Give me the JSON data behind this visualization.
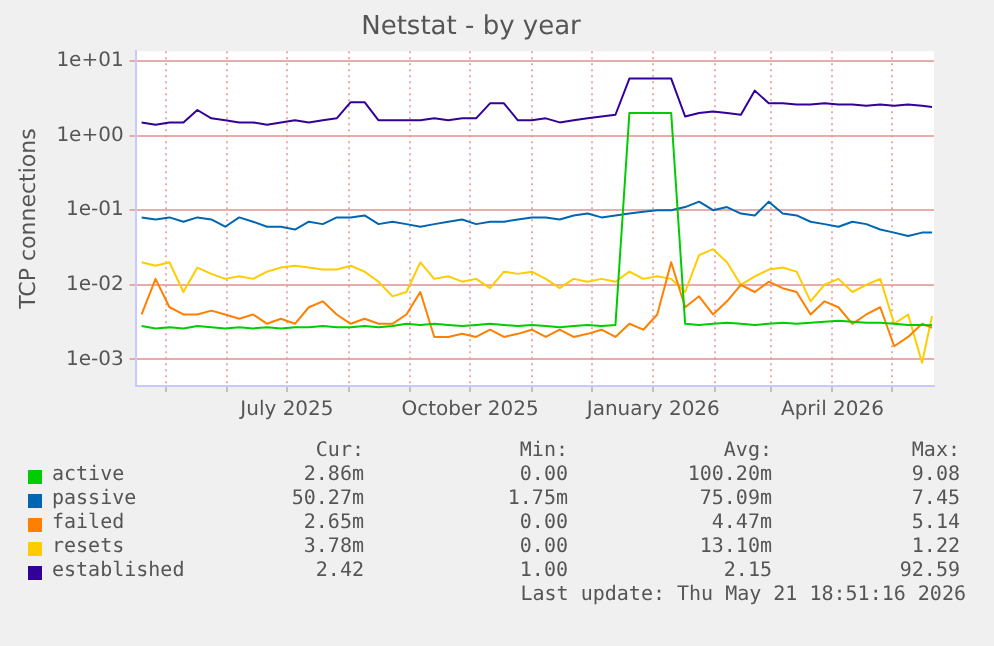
{
  "chart_data": {
    "type": "line",
    "title": "Netstat - by year",
    "ylabel": "TCP connections",
    "log": "y",
    "grid": true,
    "legend": "bottom",
    "marker": "none",
    "line_style": "solid",
    "x": [
      "2025-04-19",
      "2025-04-26",
      "2025-05-03",
      "2025-05-10",
      "2025-05-17",
      "2025-05-24",
      "2025-05-31",
      "2025-06-07",
      "2025-06-14",
      "2025-06-21",
      "2025-06-28",
      "2025-07-05",
      "2025-07-12",
      "2025-07-19",
      "2025-07-26",
      "2025-08-02",
      "2025-08-09",
      "2025-08-16",
      "2025-08-23",
      "2025-08-30",
      "2025-09-06",
      "2025-09-13",
      "2025-09-20",
      "2025-09-27",
      "2025-10-04",
      "2025-10-11",
      "2025-10-18",
      "2025-10-25",
      "2025-11-01",
      "2025-11-08",
      "2025-11-15",
      "2025-11-22",
      "2025-11-29",
      "2025-12-06",
      "2025-12-13",
      "2025-12-20",
      "2025-12-27",
      "2026-01-03",
      "2026-01-10",
      "2026-01-17",
      "2026-01-24",
      "2026-01-31",
      "2026-02-07",
      "2026-02-14",
      "2026-02-21",
      "2026-02-28",
      "2026-03-07",
      "2026-03-14",
      "2026-03-21",
      "2026-03-28",
      "2026-04-04",
      "2026-04-11",
      "2026-04-18",
      "2026-04-25",
      "2026-05-02",
      "2026-05-09",
      "2026-05-16",
      "2026-05-21"
    ],
    "xlim": [
      "2025-04-16",
      "2026-05-22"
    ],
    "xticks": [
      {
        "value": "2025-05-01",
        "label": null
      },
      {
        "value": "2025-06-01",
        "label": null
      },
      {
        "value": "2025-07-01",
        "label": "July 2025"
      },
      {
        "value": "2025-08-01",
        "label": null
      },
      {
        "value": "2025-09-01",
        "label": null
      },
      {
        "value": "2025-10-01",
        "label": "October 2025"
      },
      {
        "value": "2025-11-01",
        "label": null
      },
      {
        "value": "2025-12-01",
        "label": null
      },
      {
        "value": "2026-01-01",
        "label": "January 2026"
      },
      {
        "value": "2026-02-01",
        "label": null
      },
      {
        "value": "2026-03-01",
        "label": null
      },
      {
        "value": "2026-04-01",
        "label": "April 2026"
      },
      {
        "value": "2026-05-01",
        "label": null
      }
    ],
    "ylim": [
      0.00044,
      13.5
    ],
    "yticks": [
      {
        "value": 0.001,
        "label": "1e-03"
      },
      {
        "value": 0.01,
        "label": "1e-02"
      },
      {
        "value": 0.1,
        "label": "1e-01"
      },
      {
        "value": 1,
        "label": "1e+00"
      },
      {
        "value": 10,
        "label": "1e+01"
      }
    ],
    "series": [
      {
        "name": "active",
        "color": "#00cc00",
        "values": [
          0.0028,
          0.0026,
          0.0027,
          0.0026,
          0.0028,
          0.0027,
          0.0026,
          0.0027,
          0.0026,
          0.0027,
          0.0026,
          0.0027,
          0.0027,
          0.0028,
          0.0027,
          0.0027,
          0.0028,
          0.0027,
          0.0028,
          0.003,
          0.0029,
          0.003,
          0.0029,
          0.0028,
          0.0029,
          0.003,
          0.0029,
          0.0028,
          0.0029,
          0.0028,
          0.0027,
          0.0028,
          0.0029,
          0.0028,
          0.0029,
          2,
          2,
          2,
          2,
          0.003,
          0.0029,
          0.003,
          0.0031,
          0.003,
          0.0029,
          0.003,
          0.0031,
          0.003,
          0.0031,
          0.0032,
          0.0033,
          0.0032,
          0.0031,
          0.0031,
          0.003,
          0.0029,
          0.0029,
          0.00286
        ]
      },
      {
        "name": "passive",
        "color": "#0066b3",
        "values": [
          0.08,
          0.075,
          0.08,
          0.07,
          0.08,
          0.075,
          0.06,
          0.08,
          0.07,
          0.06,
          0.06,
          0.055,
          0.07,
          0.065,
          0.08,
          0.08,
          0.085,
          0.065,
          0.07,
          0.065,
          0.06,
          0.065,
          0.07,
          0.075,
          0.065,
          0.07,
          0.07,
          0.075,
          0.08,
          0.08,
          0.075,
          0.085,
          0.09,
          0.08,
          0.085,
          0.09,
          0.095,
          0.1,
          0.1,
          0.11,
          0.13,
          0.1,
          0.11,
          0.09,
          0.085,
          0.13,
          0.09,
          0.085,
          0.07,
          0.065,
          0.06,
          0.07,
          0.065,
          0.055,
          0.05,
          0.045,
          0.05,
          0.05
        ]
      },
      {
        "name": "failed",
        "color": "#ff8000",
        "values": [
          0.004,
          0.012,
          0.005,
          0.004,
          0.004,
          0.0045,
          0.004,
          0.0035,
          0.004,
          0.003,
          0.0035,
          0.003,
          0.005,
          0.006,
          0.004,
          0.003,
          0.0035,
          0.003,
          0.003,
          0.004,
          0.008,
          0.002,
          0.002,
          0.0022,
          0.002,
          0.0025,
          0.002,
          0.0022,
          0.0025,
          0.002,
          0.0025,
          0.002,
          0.0022,
          0.0025,
          0.002,
          0.003,
          0.0025,
          0.004,
          0.02,
          0.005,
          0.007,
          0.004,
          0.006,
          0.01,
          0.008,
          0.011,
          0.009,
          0.008,
          0.004,
          0.006,
          0.005,
          0.003,
          0.004,
          0.005,
          0.0015,
          0.002,
          0.003,
          0.00265
        ]
      },
      {
        "name": "resets",
        "color": "#ffcc00",
        "values": [
          0.02,
          0.018,
          0.02,
          0.008,
          0.017,
          0.014,
          0.012,
          0.013,
          0.012,
          0.015,
          0.017,
          0.018,
          0.017,
          0.016,
          0.016,
          0.018,
          0.015,
          0.011,
          0.007,
          0.008,
          0.02,
          0.012,
          0.013,
          0.011,
          0.012,
          0.009,
          0.015,
          0.014,
          0.015,
          0.012,
          0.009,
          0.012,
          0.011,
          0.012,
          0.011,
          0.015,
          0.012,
          0.013,
          0.012,
          0.008,
          0.025,
          0.03,
          0.02,
          0.01,
          0.013,
          0.016,
          0.017,
          0.015,
          0.006,
          0.01,
          0.012,
          0.008,
          0.01,
          0.012,
          0.003,
          0.004,
          0.0009,
          0.0038
        ]
      },
      {
        "name": "established",
        "color": "#330099",
        "values": [
          1.5,
          1.4,
          1.5,
          1.5,
          2.2,
          1.7,
          1.6,
          1.5,
          1.5,
          1.4,
          1.5,
          1.6,
          1.5,
          1.6,
          1.7,
          2.8,
          2.8,
          1.6,
          1.6,
          1.6,
          1.6,
          1.7,
          1.6,
          1.7,
          1.7,
          2.7,
          2.7,
          1.6,
          1.6,
          1.7,
          1.5,
          1.6,
          1.7,
          1.8,
          1.9,
          5.8,
          5.8,
          5.8,
          5.8,
          1.8,
          2,
          2.1,
          2,
          1.9,
          4,
          2.7,
          2.7,
          2.6,
          2.6,
          2.7,
          2.6,
          2.6,
          2.5,
          2.6,
          2.5,
          2.6,
          2.5,
          2.42
        ]
      }
    ],
    "annotations": [
      "Cur:",
      "Min:",
      "Avg:",
      "Max:",
      "2.86m",
      "0.00",
      "100.20m",
      "9.08",
      "50.27m",
      "1.75m",
      "75.09m",
      "7.45",
      "2.65m",
      "0.00",
      "4.47m",
      "5.14",
      "3.78m",
      "0.00",
      "13.10m",
      "1.22",
      "2.42",
      "1.00",
      "2.15",
      "92.59",
      "Last update: Thu May 21 18:51:16 2026"
    ]
  }
}
